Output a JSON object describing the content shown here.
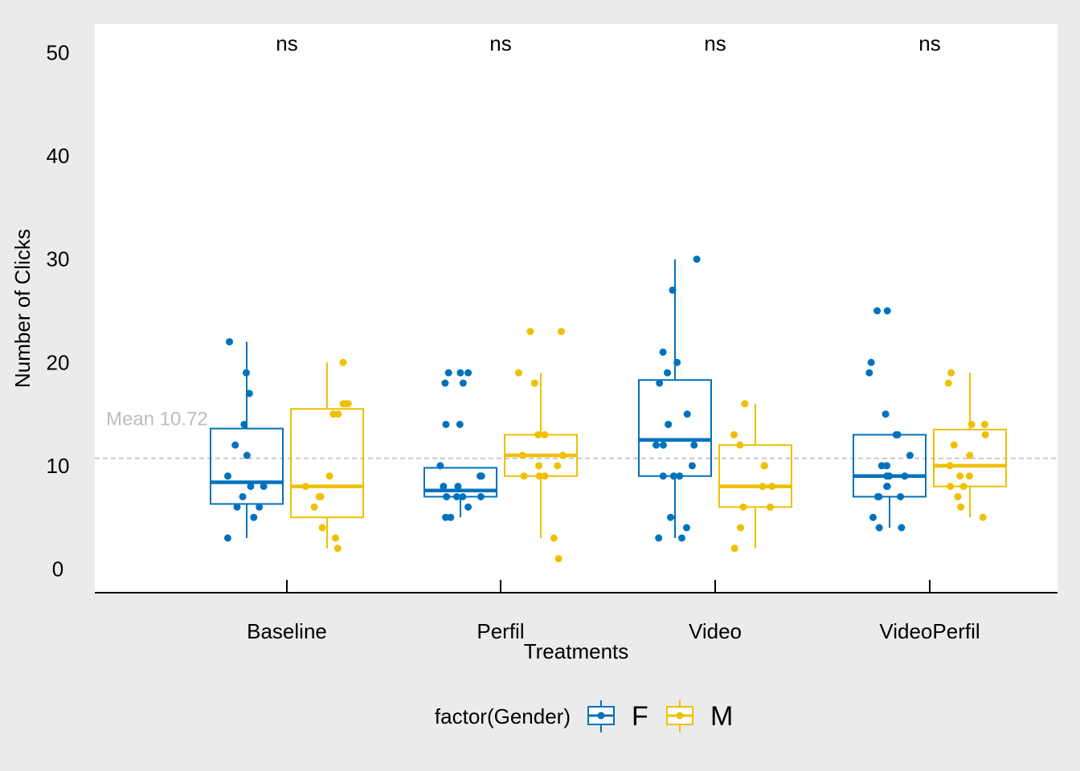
{
  "chart_data": {
    "type": "box",
    "categories": [
      "Baseline",
      "Perfil",
      "Video",
      "VideoPerfil"
    ],
    "xlabel": "Treatments",
    "ylabel": "Number of Clicks",
    "ylim": [
      0,
      50
    ],
    "yticks": [
      0,
      10,
      20,
      30,
      40,
      50
    ],
    "grid": false,
    "legend": {
      "title": "factor(Gender)",
      "position": "bottom"
    },
    "reference_line": {
      "value": 10.72,
      "label": "Mean 10.72",
      "style": "dashed",
      "color": "#bdbdbd"
    },
    "significance_labels": [
      "ns",
      "ns",
      "ns",
      "ns"
    ],
    "series": [
      {
        "name": "F",
        "color": "#0072bd",
        "boxes": [
          {
            "q1": 6.3,
            "median": 8.4,
            "q3": 13.6,
            "whisker_low": 3,
            "whisker_high": 22
          },
          {
            "q1": 7.0,
            "median": 7.6,
            "q3": 9.8,
            "whisker_low": 5,
            "whisker_high": 9.8
          },
          {
            "q1": 9.0,
            "median": 12.5,
            "q3": 18.3,
            "whisker_low": 3,
            "whisker_high": 30
          },
          {
            "q1": 7.0,
            "median": 9.0,
            "q3": 13.0,
            "whisker_low": 4,
            "whisker_high": 13.0
          }
        ],
        "points": [
          [
            19,
            17,
            22,
            12,
            14,
            11,
            9,
            8,
            8,
            7,
            6,
            6,
            5,
            3
          ],
          [
            19,
            19,
            19,
            18,
            18,
            14,
            14,
            10,
            9,
            9,
            8,
            8,
            7,
            7,
            7,
            7,
            6,
            5,
            5
          ],
          [
            30,
            27,
            21,
            20,
            19,
            18,
            15,
            14,
            14,
            12,
            12,
            12,
            10,
            9,
            9,
            9,
            5,
            4,
            3,
            3
          ],
          [
            25,
            25,
            20,
            19,
            15,
            13,
            13,
            11,
            10,
            10,
            9,
            9,
            9,
            8,
            8,
            7,
            7,
            7,
            5,
            4,
            4
          ]
        ]
      },
      {
        "name": "M",
        "color": "#efc000",
        "boxes": [
          {
            "q1": 5.0,
            "median": 8.0,
            "q3": 15.5,
            "whisker_low": 2,
            "whisker_high": 20
          },
          {
            "q1": 9.0,
            "median": 11.0,
            "q3": 13.0,
            "whisker_low": 3,
            "whisker_high": 19
          },
          {
            "q1": 6.0,
            "median": 8.0,
            "q3": 12.0,
            "whisker_low": 2,
            "whisker_high": 16
          },
          {
            "q1": 8.0,
            "median": 10.0,
            "q3": 13.5,
            "whisker_low": 5,
            "whisker_high": 19
          }
        ],
        "points": [
          [
            20,
            16,
            16,
            16,
            15,
            15,
            9,
            8,
            7,
            7,
            6,
            4,
            3,
            2
          ],
          [
            23,
            23,
            19,
            18,
            13,
            13,
            11,
            11,
            10,
            10,
            9,
            9,
            9,
            3,
            1
          ],
          [
            16,
            13,
            12,
            10,
            10,
            8,
            8,
            6,
            6,
            4,
            2
          ],
          [
            19,
            18,
            14,
            14,
            13,
            12,
            11,
            10,
            9,
            9,
            8,
            8,
            7,
            6,
            5
          ]
        ]
      }
    ]
  }
}
